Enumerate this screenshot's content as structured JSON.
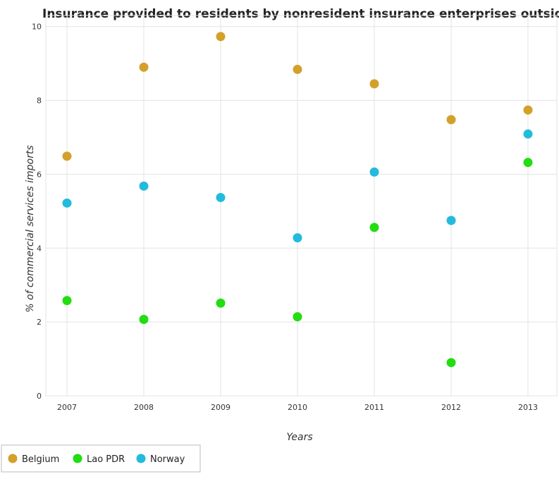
{
  "chart_data": {
    "type": "scatter",
    "title": "Insurance provided to residents by nonresident insurance enterprises outside a co",
    "xlabel": "Years",
    "ylabel": "% of commercial services imports",
    "x": [
      "2007",
      "2008",
      "2009",
      "2010",
      "2011",
      "2012",
      "2013"
    ],
    "ylim": [
      0,
      10.3
    ],
    "yticks": [
      "0",
      "2",
      "4",
      "6",
      "8",
      "10"
    ],
    "grid": true,
    "legend_position": "bottom-left",
    "series": [
      {
        "name": "Belgium",
        "color": "#d4a02a",
        "values": [
          6.49,
          8.9,
          9.73,
          8.84,
          8.45,
          7.48,
          7.74
        ]
      },
      {
        "name": "Lao PDR",
        "color": "#22dd11",
        "values": [
          2.58,
          2.07,
          2.51,
          2.14,
          4.56,
          0.9,
          6.32
        ]
      },
      {
        "name": "Norway",
        "color": "#22bbdd",
        "values": [
          5.22,
          5.68,
          5.37,
          4.28,
          6.06,
          4.75,
          7.09
        ]
      }
    ]
  }
}
